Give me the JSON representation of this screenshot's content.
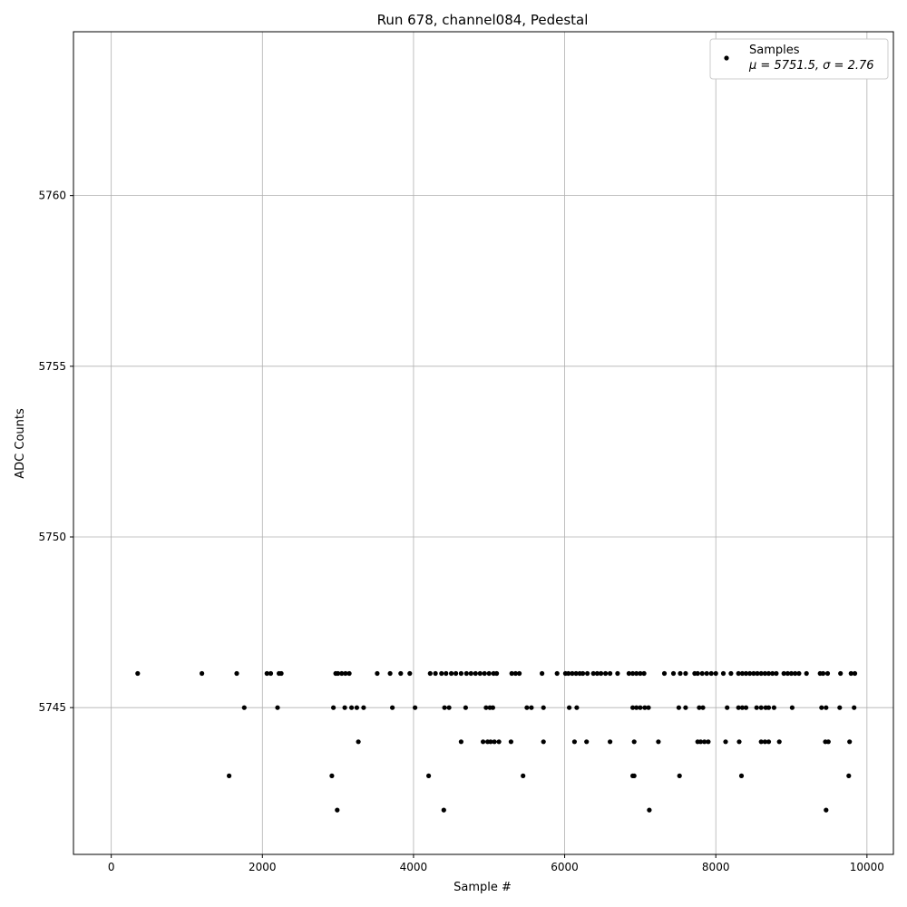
{
  "chart_data": {
    "type": "scatter",
    "title": "Run 678, channel084, Pedestal",
    "xlabel": "Sample #",
    "ylabel": "ADC Counts",
    "xlim": [
      -500,
      10350
    ],
    "ylim": [
      5740.7,
      5764.8
    ],
    "x_ticks": [
      0,
      2000,
      4000,
      6000,
      8000,
      10000
    ],
    "x_tick_labels": [
      "0",
      "2000",
      "4000",
      "6000",
      "8000",
      "10000"
    ],
    "y_ticks": [
      5745,
      5750,
      5755,
      5760
    ],
    "y_tick_labels": [
      "5745",
      "5750",
      "5755",
      "5760"
    ],
    "grid": true,
    "legend_position": "top-right",
    "marker_color": "#000000",
    "series": [
      {
        "name": "Samples",
        "stats_label": "μ = 5751.5, σ = 2.76",
        "mean": 5751.5,
        "sigma": 2.76,
        "n_samples": 9850,
        "x_range": [
          0,
          9850
        ],
        "bands": [
          {
            "y": 5742,
            "x": [
              2990,
              4400,
              7120,
              9460
            ]
          },
          {
            "y": 5743,
            "x": [
              1560,
              2920,
              4200,
              5450,
              6900,
              6920,
              7520,
              8340,
              9760
            ]
          },
          {
            "y": 5744,
            "x": [
              3270,
              4630,
              4920,
              4980,
              5020,
              5070,
              5130,
              5290,
              5720,
              6130,
              6290,
              6600,
              6920,
              7240,
              7760,
              7800,
              7850,
              7900,
              8130,
              8310,
              8600,
              8650,
              8700,
              8840,
              9450,
              9490,
              9770
            ]
          },
          {
            "y": 5745,
            "x": [
              1760,
              2200,
              2940,
              3090,
              3180,
              3250,
              3340,
              3720,
              4020,
              4410,
              4470,
              4690,
              4960,
              5010,
              5050,
              5500,
              5560,
              5720,
              6060,
              6160,
              6900,
              6950,
              7000,
              7060,
              7110,
              7510,
              7600,
              7780,
              7830,
              8150,
              8300,
              8350,
              8400,
              8540,
              8600,
              8660,
              8700,
              8770,
              9010,
              9400,
              9460,
              9640,
              9830
            ]
          },
          {
            "y": 5746,
            "x": [
              350,
              1200,
              1660,
              2060,
              2110,
              2220,
              2250,
              2970,
              3000,
              3050,
              3100,
              3150,
              3520,
              3690,
              3830,
              3950,
              4220,
              4290,
              4370,
              4430,
              4500,
              4560,
              4630,
              4700,
              4760,
              4820,
              4880,
              4940,
              5000,
              5060,
              5100,
              5300,
              5350,
              5400,
              5700,
              5900,
              6010,
              6050,
              6100,
              6150,
              6200,
              6240,
              6300,
              6380,
              6430,
              6480,
              6540,
              6600,
              6700,
              6850,
              6900,
              6950,
              7000,
              7050,
              7320,
              7440,
              7530,
              7600,
              7720,
              7760,
              7820,
              7880,
              7940,
              8000,
              8100,
              8200,
              8300,
              8350,
              8400,
              8450,
              8500,
              8550,
              8600,
              8650,
              8700,
              8750,
              8800,
              8900,
              8950,
              9000,
              9050,
              9100,
              9200,
              9380,
              9420,
              9480,
              9650,
              9790,
              9840
            ]
          }
        ]
      }
    ]
  }
}
